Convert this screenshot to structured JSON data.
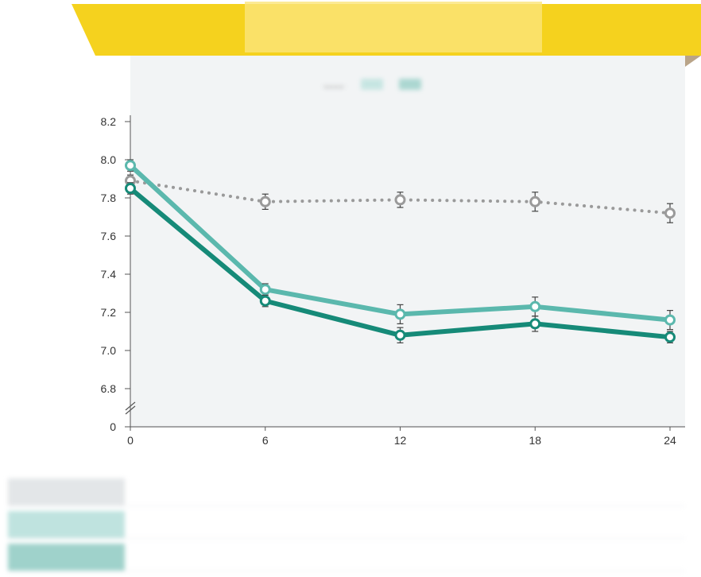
{
  "banner": {
    "title": "",
    "color": "#f5d21e",
    "fold_color": "#b9a488"
  },
  "chart_data": {
    "type": "line",
    "title": "",
    "xlabel": "",
    "ylabel": "",
    "x": [
      0,
      6,
      12,
      18,
      24
    ],
    "x_tick_labels": [
      "0",
      "6",
      "12",
      "18",
      "24"
    ],
    "y_tick_labels": [
      "0",
      "6.8",
      "7.0",
      "7.2",
      "7.4",
      "7.6",
      "7.8",
      "8.0",
      "8.2"
    ],
    "ylim": [
      6.8,
      8.2
    ],
    "y_axis_break": true,
    "y_axis_zero_label": "0",
    "grid": false,
    "legend_position": "top-right",
    "series": [
      {
        "name": "",
        "color": "#9a9a9a",
        "style": "dotted",
        "values": [
          7.89,
          7.78,
          7.79,
          7.78,
          7.72
        ],
        "error": [
          0.03,
          0.04,
          0.04,
          0.05,
          0.05
        ]
      },
      {
        "name": "",
        "color": "#5bb8ad",
        "style": "solid",
        "values": [
          7.97,
          7.32,
          7.19,
          7.23,
          7.16
        ],
        "error": [
          0.03,
          0.03,
          0.05,
          0.05,
          0.05
        ]
      },
      {
        "name": "",
        "color": "#168a78",
        "style": "solid",
        "values": [
          7.85,
          7.26,
          7.08,
          7.14,
          7.07
        ],
        "error": [
          0.03,
          0.03,
          0.04,
          0.04,
          0.03
        ]
      }
    ]
  }
}
